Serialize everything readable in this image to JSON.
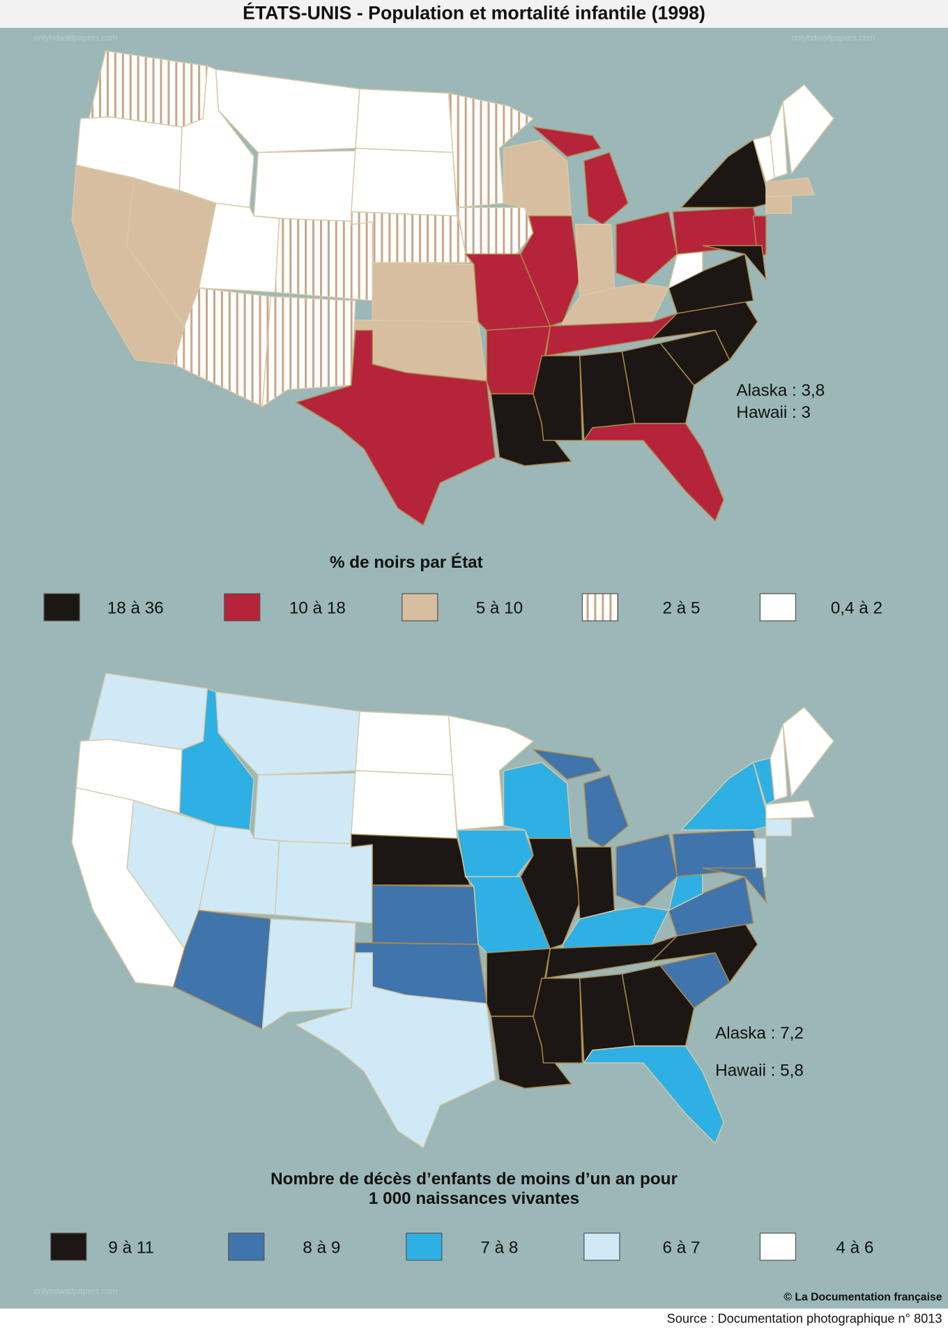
{
  "header": {
    "title": "ÉTATS-UNIS - Population et mortalité infantile (1998)",
    "watermark": "onlyhdwallpapers.com"
  },
  "maps": [
    {
      "legend_title": [
        "% de noirs par État"
      ],
      "legend": [
        {
          "label": "18 à 36",
          "color": "#1c1714"
        },
        {
          "label": "10 à 18",
          "color": "#b5243a"
        },
        {
          "label": "5 à 10",
          "color": "#d8bea0"
        },
        {
          "label": "2 à 5",
          "color": "#ffffff",
          "stripe": "#c7a78b"
        },
        {
          "label": "0,4 à 2",
          "color": "#ffffff"
        }
      ],
      "notes": [
        "Alaska : 3,8",
        "Hawaii : 3"
      ]
    },
    {
      "legend_title": [
        "Nombre de décès d’enfants de moins d’un an pour",
        "1 000 naissances vivantes"
      ],
      "legend": [
        {
          "label": "9 à 11",
          "color": "#1c1714"
        },
        {
          "label": "8 à 9",
          "color": "#3f74ad"
        },
        {
          "label": "7 à 8",
          "color": "#2eb0e4"
        },
        {
          "label": "6 à 7",
          "color": "#cfe9f7"
        },
        {
          "label": "4 à 6",
          "color": "#ffffff"
        }
      ],
      "notes": [
        "Alaska : 7,2",
        "Hawaii : 5,8"
      ]
    }
  ],
  "footer": {
    "credit": "© La Documentation française",
    "source": "Source : Documentation photographique n° 8013"
  }
}
